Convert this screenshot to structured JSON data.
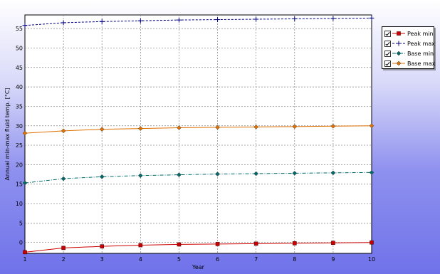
{
  "chart_data": {
    "type": "line",
    "title": "",
    "xlabel": "Year",
    "ylabel": "Annual min-max fluid temp. [°C]",
    "x": [
      1,
      2,
      3,
      4,
      5,
      6,
      7,
      8,
      9,
      10
    ],
    "xticks": [
      "1",
      "2",
      "3",
      "4",
      "5",
      "6",
      "7",
      "8",
      "9",
      "10"
    ],
    "yticks": [
      "0",
      "5",
      "10",
      "15",
      "20",
      "25",
      "30",
      "35",
      "40",
      "45",
      "50",
      "55"
    ],
    "xlim": [
      1,
      10
    ],
    "ylim": [
      -2.8,
      58.5
    ],
    "grid": true,
    "legend_position": "top-right outside plot",
    "series": [
      {
        "name": "Peak min",
        "color": "#cc0000",
        "marker": "square",
        "dash": "solid",
        "values": [
          -2.5,
          -1.4,
          -1.0,
          -0.7,
          -0.5,
          -0.4,
          -0.3,
          -0.2,
          -0.1,
          0.0
        ]
      },
      {
        "name": "Peak max",
        "color": "#000080",
        "marker": "plus",
        "dash": "dashed",
        "values": [
          55.8,
          56.5,
          56.8,
          57.0,
          57.2,
          57.3,
          57.4,
          57.5,
          57.6,
          57.7
        ]
      },
      {
        "name": "Base min",
        "color": "#006a6a",
        "marker": "diamond",
        "dash": "dashdot",
        "values": [
          15.3,
          16.4,
          16.9,
          17.2,
          17.4,
          17.6,
          17.7,
          17.8,
          17.9,
          18.0
        ]
      },
      {
        "name": "Base max",
        "color": "#e07000",
        "marker": "diamond",
        "dash": "solid",
        "values": [
          28.1,
          28.7,
          29.1,
          29.3,
          29.5,
          29.6,
          29.7,
          29.8,
          29.9,
          30.0
        ]
      }
    ]
  }
}
